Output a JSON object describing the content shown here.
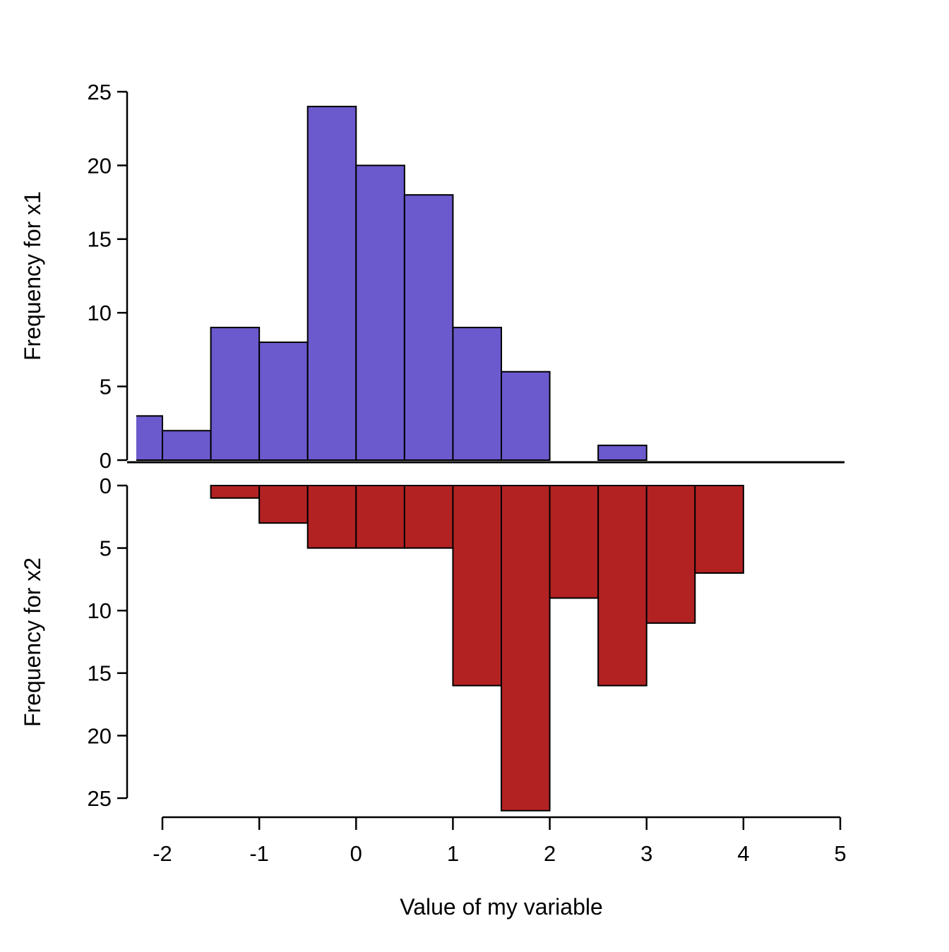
{
  "chart_data": {
    "type": "bar",
    "subtype": "back-to-back-histogram",
    "xlabel": "Value of my variable",
    "x_ticks": [
      -2,
      -1,
      0,
      1,
      2,
      3,
      4,
      5
    ],
    "xlim": [
      -2.27,
      5.05
    ],
    "grid": false,
    "legend": "none",
    "top": {
      "ylabel": "Frequency for x1",
      "series_name": "x1",
      "color": "#6A5ACD",
      "bar_border_color": "#000000",
      "bin_start": -2.5,
      "bin_width": 0.5,
      "bin_edges": [
        -2.5,
        -2,
        -1.5,
        -1,
        -0.5,
        0,
        0.5,
        1,
        1.5,
        2,
        2.5,
        3
      ],
      "counts": [
        3,
        2,
        9,
        8,
        24,
        20,
        18,
        9,
        6,
        0,
        1
      ],
      "y_ticks": [
        0,
        5,
        10,
        15,
        20,
        25
      ],
      "ylim": [
        0,
        25
      ]
    },
    "bottom": {
      "ylabel": "Frequency for x2",
      "series_name": "x2",
      "color": "#B22222",
      "bar_border_color": "#000000",
      "inverted": true,
      "bin_start": -1.5,
      "bin_width": 0.5,
      "bin_edges": [
        -1.5,
        -1,
        -0.5,
        0,
        0.5,
        1,
        1.5,
        2,
        2.5,
        3,
        3.5,
        4
      ],
      "counts": [
        1,
        3,
        5,
        5,
        5,
        16,
        26,
        9,
        16,
        11,
        7
      ],
      "y_ticks": [
        0,
        5,
        10,
        15,
        20,
        25
      ],
      "ylim": [
        0,
        26
      ]
    }
  }
}
